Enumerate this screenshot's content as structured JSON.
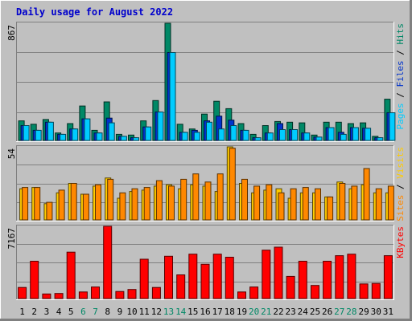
{
  "chart_data": {
    "type": "bar",
    "title": "Daily usage for August 2022",
    "categories": [
      "1",
      "2",
      "3",
      "4",
      "5",
      "6",
      "7",
      "8",
      "9",
      "10",
      "11",
      "12",
      "13",
      "14",
      "15",
      "16",
      "17",
      "18",
      "19",
      "20",
      "21",
      "22",
      "23",
      "24",
      "25",
      "26",
      "27",
      "28",
      "29",
      "30",
      "31"
    ],
    "weekend_days": [
      "6",
      "7",
      "13",
      "14",
      "20",
      "21",
      "27",
      "28"
    ],
    "panels": [
      {
        "id": "hits-files-pages",
        "ymax": 867,
        "ymax_label": "867",
        "grid": true,
        "legend": [
          {
            "text": "Pages",
            "color": "#00ccff"
          },
          {
            "text": " / ",
            "color": "#000000"
          },
          {
            "text": "Files",
            "color": "#0033cc"
          },
          {
            "text": " / ",
            "color": "#000000"
          },
          {
            "text": "Hits",
            "color": "#008866"
          }
        ],
        "series": [
          {
            "name": "Hits",
            "color": "#008866",
            "values": [
              145,
              120,
              155,
              55,
              125,
              255,
              75,
              285,
              45,
              40,
              145,
              295,
              875,
              120,
              85,
              195,
              290,
              235,
              125,
              45,
              110,
              140,
              135,
              130,
              40,
              135,
              135,
              125,
              130,
              30,
              305
            ]
          },
          {
            "name": "Files",
            "color": "#0033cc",
            "values": [
              110,
              75,
              135,
              45,
              85,
              160,
              55,
              165,
              30,
              20,
              100,
              210,
              650,
              60,
              75,
              145,
              180,
              150,
              75,
              20,
              55,
              125,
              80,
              55,
              25,
              95,
              60,
              95,
              90,
              20,
              205
            ]
          },
          {
            "name": "Pages",
            "color": "#00ccff",
            "values": [
              110,
              75,
              135,
              45,
              85,
              160,
              55,
              130,
              30,
              20,
              100,
              210,
              650,
              60,
              60,
              135,
              85,
              110,
              75,
              20,
              55,
              80,
              80,
              55,
              25,
              95,
              45,
              95,
              90,
              20,
              205
            ]
          }
        ]
      },
      {
        "id": "visits-sites",
        "ymax": 54,
        "ymax_label": "54",
        "grid": true,
        "legend": [
          {
            "text": "Sites",
            "color": "#ff8800"
          },
          {
            "text": " / ",
            "color": "#000000"
          },
          {
            "text": "Visits",
            "color": "#ffcc00"
          }
        ],
        "series": [
          {
            "name": "Visits",
            "color": "#ffcc00",
            "values": [
              23,
              24,
              12,
              20,
              27,
              19,
              25,
              31,
              16,
              21,
              22,
              25,
              26,
              23,
              26,
              25,
              21,
              54,
              27,
              20,
              22,
              23,
              16,
              20,
              20,
              17,
              28,
              23,
              26,
              20,
              20
            ]
          },
          {
            "name": "Sites",
            "color": "#ff8800",
            "values": [
              24,
              24,
              13,
              22,
              27,
              19,
              26,
              30,
              20,
              23,
              24,
              29,
              25,
              30,
              34,
              28,
              34,
              53,
              30,
              25,
              26,
              20,
              23,
              24,
              23,
              17,
              27,
              25,
              38,
              23,
              25
            ]
          }
        ]
      },
      {
        "id": "kbytes",
        "ymax": 7167,
        "ymax_label": "7167",
        "grid": true,
        "legend": [
          {
            "text": "KBytes",
            "color": "#ff0000"
          }
        ],
        "series": [
          {
            "name": "KBytes",
            "color": "#ff0000",
            "values": [
              1100,
              3700,
              450,
              500,
              4600,
              650,
              1150,
              7200,
              700,
              900,
              3900,
              1100,
              4200,
              2350,
              4400,
              3400,
              4400,
              4100,
              650,
              1150,
              4800,
              5100,
              2200,
              3700,
              1300,
              3700,
              4250,
              4400,
              1450,
              1500,
              4250
            ]
          }
        ]
      }
    ]
  }
}
